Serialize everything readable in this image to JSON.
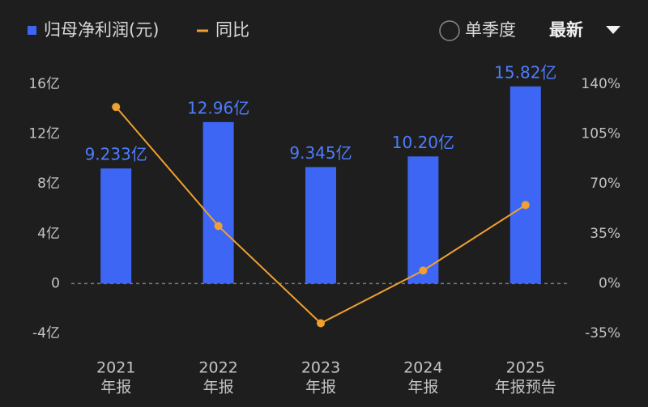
{
  "chart_data": {
    "type": "bar-line",
    "categories": [
      [
        "2021",
        "年报"
      ],
      [
        "2022",
        "年报"
      ],
      [
        "2023",
        "年报"
      ],
      [
        "2024",
        "年报"
      ],
      [
        "2025",
        "年报预告"
      ]
    ],
    "series": [
      {
        "name": "归母净利润(元)",
        "color": "#3d66f5",
        "values": [
          9.233,
          12.96,
          9.345,
          10.2,
          15.82
        ],
        "value_labels": [
          "9.233亿",
          "12.96亿",
          "9.345亿",
          "10.20亿",
          "15.82亿"
        ]
      },
      {
        "name": "同比",
        "color": "#f0a030",
        "axis": "y2",
        "values": [
          124,
          40.4,
          -27.9,
          9.1,
          55.1
        ]
      }
    ],
    "ylim": [
      -4,
      16
    ],
    "yticks": [
      {
        "value": 16,
        "label": "16亿"
      },
      {
        "value": 12,
        "label": "12亿"
      },
      {
        "value": 8,
        "label": "8亿"
      },
      {
        "value": 4,
        "label": "4亿"
      },
      0,
      {
        "value": -4,
        "label": "-4亿"
      }
    ],
    "y2lim": [
      -35,
      140
    ],
    "y2ticks": [
      {
        "value": 140,
        "label": "140%"
      },
      {
        "value": 105,
        "label": "105%"
      },
      {
        "value": 70,
        "label": "70%"
      },
      {
        "value": 35,
        "label": "35%"
      },
      {
        "value": 0,
        "label": "0%"
      },
      {
        "value": -35,
        "label": "-35%"
      }
    ]
  },
  "controls": {
    "quarter": "单季度",
    "sort": "最新"
  }
}
